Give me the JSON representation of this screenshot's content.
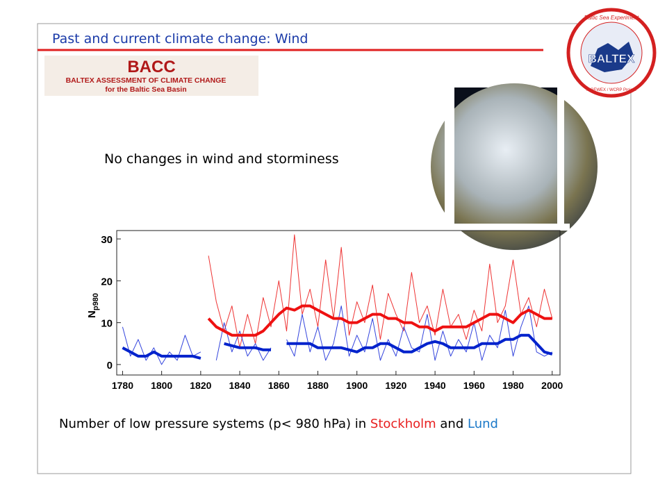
{
  "slide": {
    "title": "Past and current climate change: Wind",
    "banner": {
      "acronym": "BACC",
      "line1": "BALTEX ASSESSMENT OF CLIMATE CHANGE",
      "line2": "for the Baltic Sea Basin"
    },
    "logo": {
      "ring_top": "Baltic Sea Experiment",
      "name": "BALTEX",
      "ring_bottom": "A GEWEX / WCRP Project"
    },
    "statement": "No changes in wind and storminess",
    "caption": {
      "text": "Number of low pressure systems (p< 980 hPa) in ",
      "city1": "Stockholm",
      "joiner": " and ",
      "city2": "Lund"
    }
  },
  "chart_data": {
    "type": "line",
    "y_label": "N",
    "y_label_sub": "p980",
    "x": [
      1780,
      1784,
      1788,
      1792,
      1796,
      1800,
      1804,
      1808,
      1812,
      1816,
      1820,
      1824,
      1828,
      1832,
      1836,
      1840,
      1844,
      1848,
      1852,
      1856,
      1860,
      1864,
      1868,
      1872,
      1876,
      1880,
      1884,
      1888,
      1892,
      1896,
      1900,
      1904,
      1908,
      1912,
      1916,
      1920,
      1924,
      1928,
      1932,
      1936,
      1940,
      1944,
      1948,
      1952,
      1956,
      1960,
      1964,
      1968,
      1972,
      1976,
      1980,
      1984,
      1988,
      1992,
      1996,
      2000
    ],
    "series": [
      {
        "color": "#ee3333",
        "width": 1,
        "values": [
          null,
          null,
          null,
          null,
          null,
          null,
          null,
          null,
          null,
          null,
          null,
          26,
          15,
          8,
          14,
          4,
          12,
          5,
          16,
          9,
          20,
          8,
          31,
          12,
          18,
          9,
          25,
          11,
          28,
          7,
          15,
          10,
          19,
          6,
          17,
          12,
          8,
          22,
          10,
          14,
          7,
          18,
          9,
          12,
          6,
          13,
          8,
          24,
          10,
          14,
          25,
          12,
          16,
          9,
          18,
          11
        ]
      },
      {
        "color": "#3344dd",
        "width": 1,
        "values": [
          9,
          2,
          6,
          1,
          4,
          0,
          3,
          1,
          7,
          2,
          3,
          null,
          1,
          10,
          3,
          8,
          2,
          5,
          1,
          4,
          null,
          6,
          2,
          12,
          3,
          9,
          1,
          5,
          14,
          2,
          7,
          3,
          11,
          1,
          6,
          2,
          9,
          4,
          3,
          12,
          1,
          8,
          2,
          6,
          3,
          10,
          1,
          7,
          4,
          13,
          2,
          9,
          14,
          3,
          2,
          3
        ]
      },
      {
        "color": "#ee1111",
        "width": 4,
        "values": [
          null,
          null,
          null,
          null,
          null,
          null,
          null,
          null,
          null,
          null,
          null,
          11,
          9,
          8,
          7,
          7,
          7,
          7,
          8,
          10,
          12,
          13.5,
          13,
          14,
          14,
          13,
          12,
          11,
          11,
          10,
          10,
          11,
          12,
          12,
          11,
          11,
          10,
          10,
          9,
          9,
          8,
          9,
          9,
          9,
          9,
          10,
          11,
          12,
          12,
          11,
          10,
          12,
          13,
          12,
          11,
          11
        ]
      },
      {
        "color": "#0022cc",
        "width": 4,
        "values": [
          4,
          3,
          2,
          2,
          3,
          2,
          2,
          2,
          2,
          2,
          1.5,
          null,
          null,
          5,
          4.5,
          4,
          4,
          4,
          3.5,
          3.5,
          null,
          5,
          5,
          5,
          5,
          4,
          4,
          4,
          4,
          3.5,
          3,
          4,
          4,
          5,
          5,
          4,
          3,
          3,
          4,
          5,
          5.5,
          5,
          4,
          4,
          4,
          4,
          5,
          5,
          5,
          6,
          6,
          7,
          7,
          5,
          3,
          2.5
        ]
      }
    ],
    "xlim": [
      1777,
      2004
    ],
    "ylim": [
      -2.5,
      32
    ],
    "xticks": [
      1780,
      1800,
      1820,
      1840,
      1860,
      1880,
      1900,
      1920,
      1940,
      1960,
      1980,
      2000
    ],
    "yticks": [
      0,
      10,
      20,
      30
    ]
  }
}
